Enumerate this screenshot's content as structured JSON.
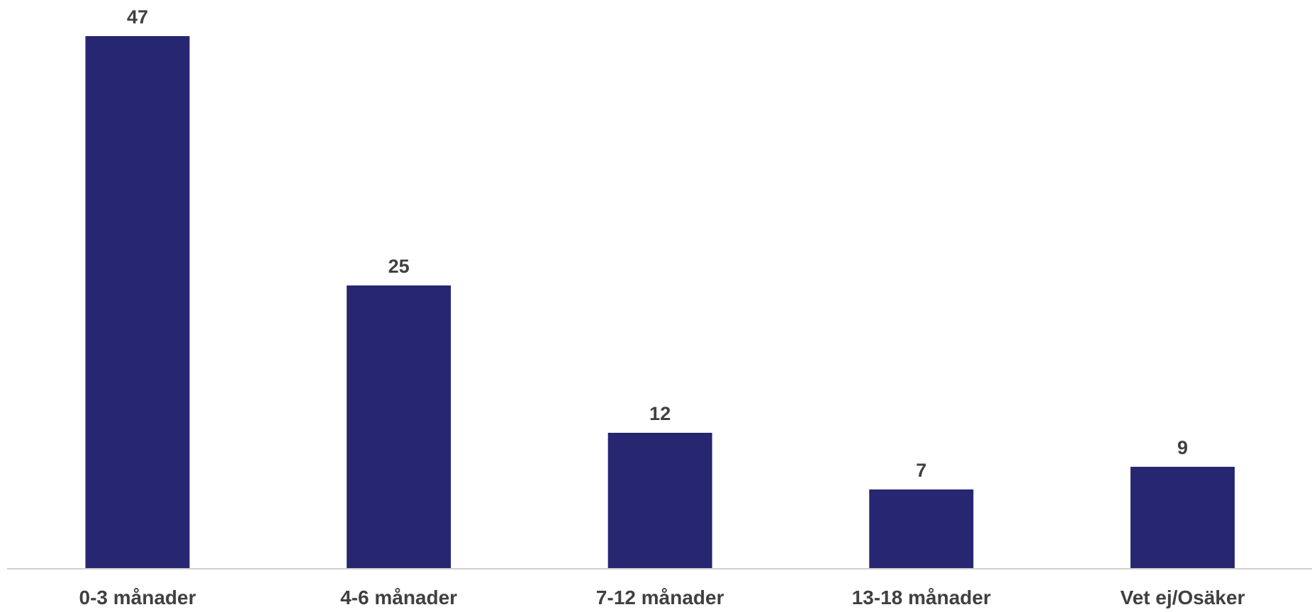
{
  "chart_data": {
    "type": "bar",
    "categories": [
      "0-3 månader",
      "4-6 månader",
      "7-12 månader",
      "13-18 månader",
      "Vet ej/Osäker"
    ],
    "values": [
      47,
      25,
      12,
      7,
      9
    ],
    "data_labels": [
      "47",
      "25",
      "12",
      "7",
      "9"
    ],
    "title": "",
    "xlabel": "",
    "ylabel": "",
    "ylim": [
      0,
      50
    ],
    "grid": false,
    "legend": "none",
    "colors": {
      "bar": "#262671",
      "text": "#404040",
      "axis": "#d0d0d0"
    }
  }
}
